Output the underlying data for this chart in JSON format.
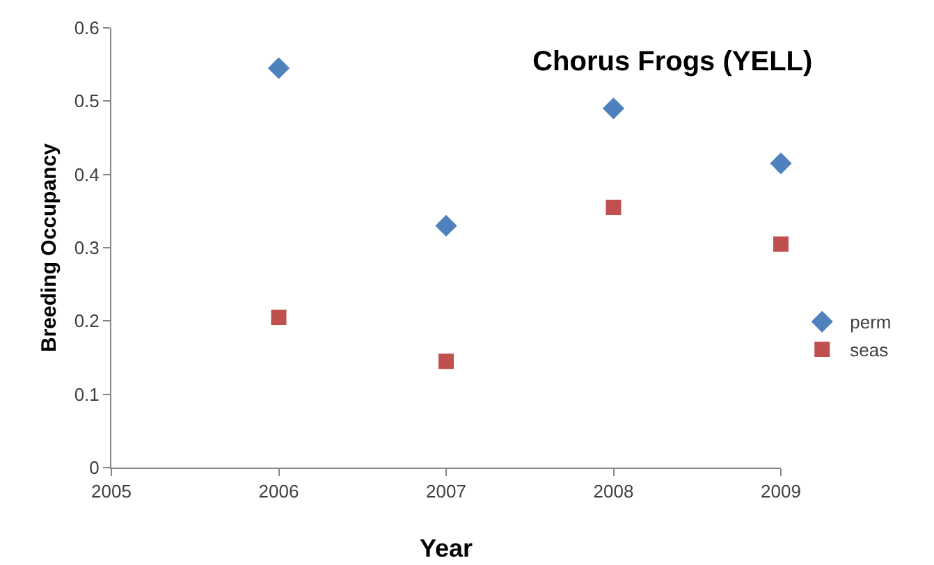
{
  "chart_data": {
    "type": "scatter",
    "title": "Chorus Frogs (YELL)",
    "xlabel": "Year",
    "ylabel": "Breeding Occupancy",
    "x": [
      2006,
      2007,
      2008,
      2009
    ],
    "series": [
      {
        "name": "perm",
        "color": "#4f81bd",
        "marker": "diamond",
        "values": [
          0.545,
          0.33,
          0.49,
          0.415
        ]
      },
      {
        "name": "seas",
        "color": "#c0504d",
        "marker": "square",
        "values": [
          0.205,
          0.145,
          0.355,
          0.305
        ]
      }
    ],
    "xlim": [
      2005,
      2009
    ],
    "xticks": [
      2005,
      2006,
      2007,
      2008,
      2009
    ],
    "ylim": [
      0,
      0.6
    ],
    "yticks": [
      0,
      0.1,
      0.2,
      0.3,
      0.4,
      0.5,
      0.6
    ],
    "grid": false,
    "legend": "right"
  }
}
